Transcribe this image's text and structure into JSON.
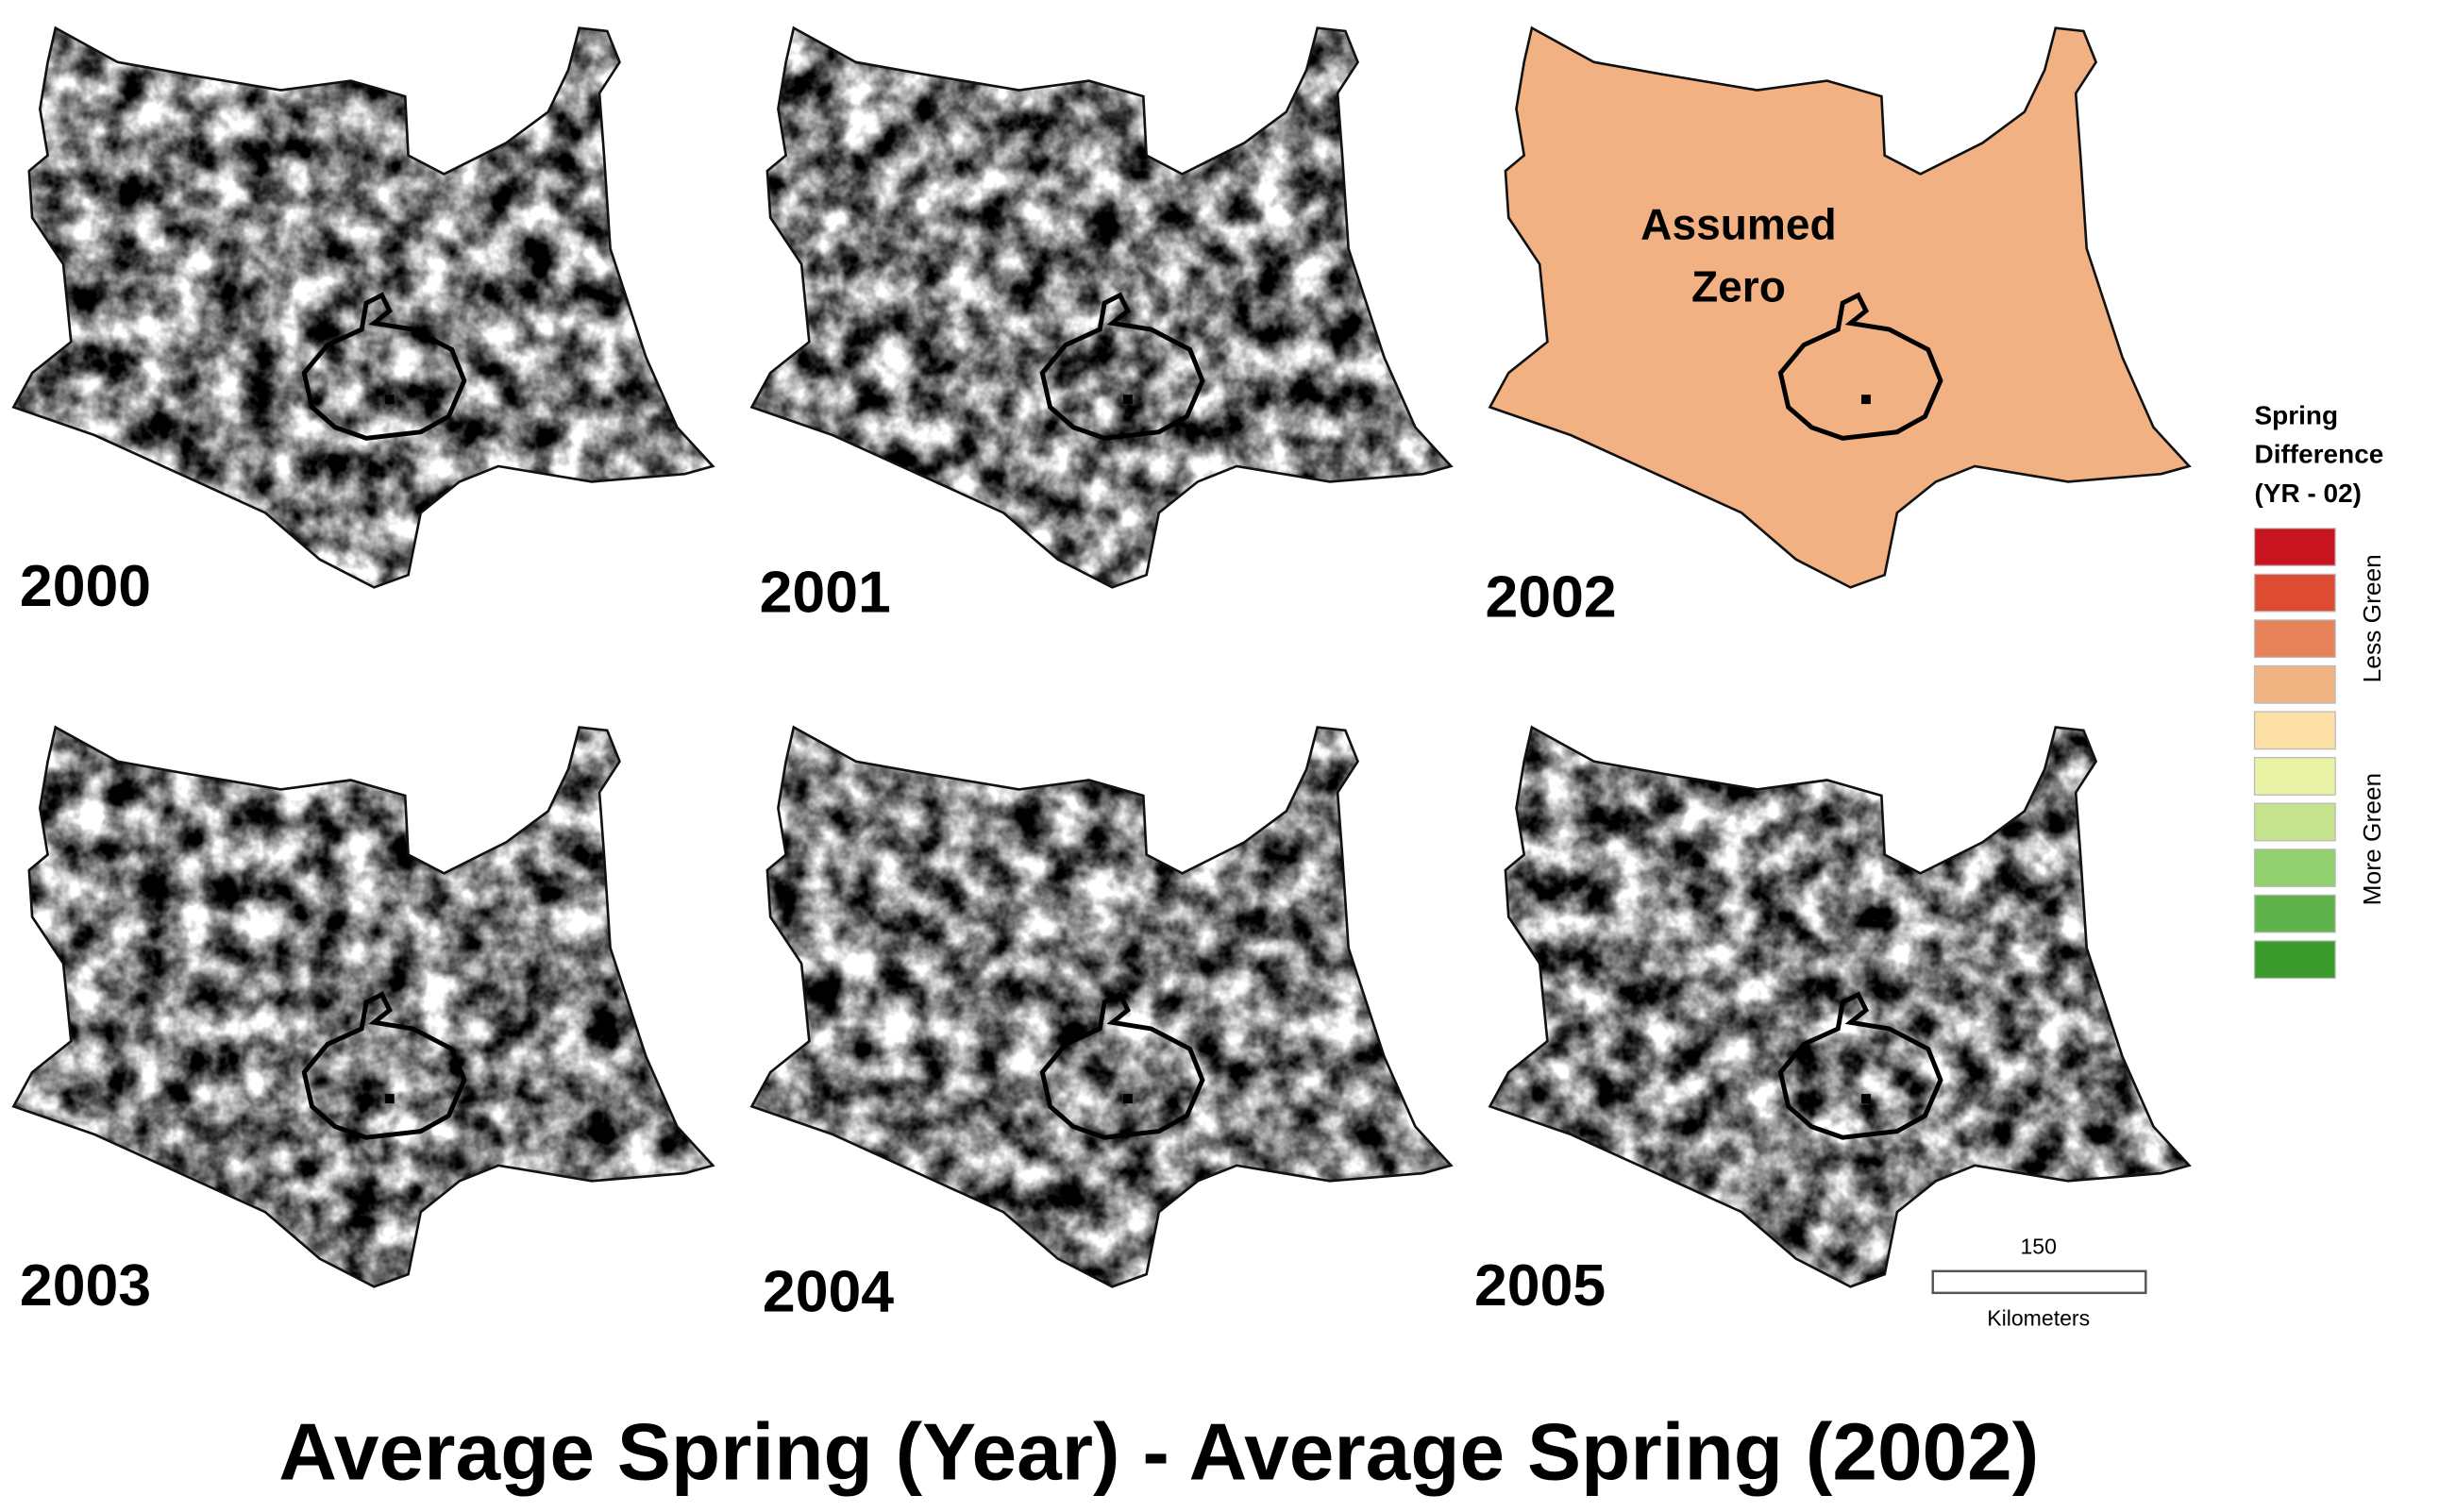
{
  "panels": [
    {
      "label": "2000"
    },
    {
      "label": "2001"
    },
    {
      "label": "2002",
      "annotation": [
        "Assumed",
        "Zero"
      ]
    },
    {
      "label": "2003"
    },
    {
      "label": "2004"
    },
    {
      "label": "2005"
    }
  ],
  "legend": {
    "title": [
      "Spring",
      "Difference",
      "(YR - 02)"
    ],
    "colors": [
      "#c8141e",
      "#dc4b32",
      "#e8825a",
      "#f0b482",
      "#fde0a5",
      "#eaf3a5",
      "#c4e38c",
      "#92cf6e",
      "#5fb34a",
      "#3a9a2c"
    ],
    "labels": [
      "Less Green",
      "More Green"
    ]
  },
  "scale_bar": {
    "value": "150",
    "unit": "Kilometers"
  },
  "title": "Average Spring (Year) - Average Spring (2002)"
}
